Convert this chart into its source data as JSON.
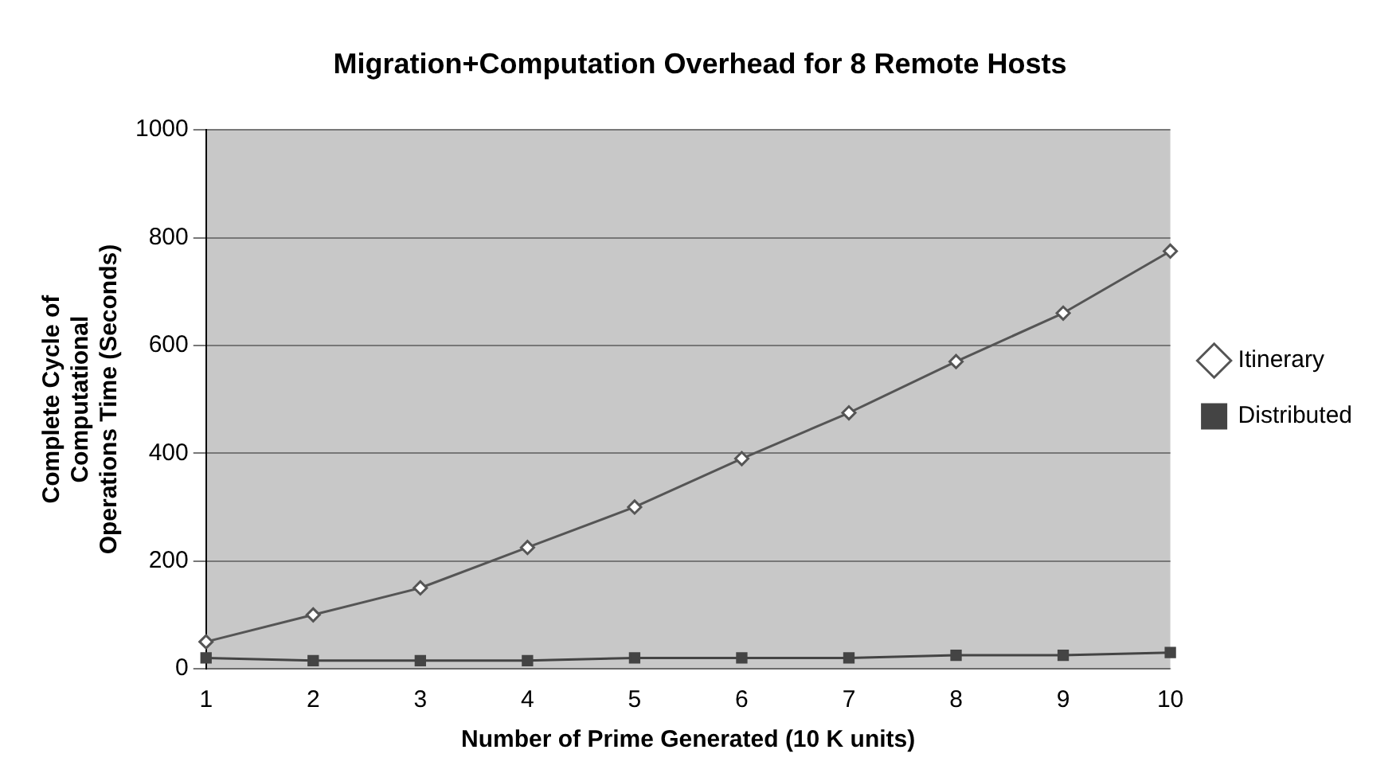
{
  "chart_data": {
    "type": "line",
    "title": "Migration+Computation Overhead for 8 Remote Hosts",
    "xlabel": "Number of Prime Generated (10 K units)",
    "ylabel": "Complete Cycle of Computational Operations Time (Seconds)",
    "categories": [
      "1",
      "2",
      "3",
      "4",
      "5",
      "6",
      "7",
      "8",
      "9",
      "10"
    ],
    "series": [
      {
        "name": "Itinerary",
        "color": "#555555",
        "marker": "diamond",
        "values": [
          50,
          100,
          150,
          225,
          300,
          390,
          475,
          570,
          660,
          775
        ]
      },
      {
        "name": "Distributed",
        "color": "#444444",
        "marker": "square",
        "values": [
          20,
          15,
          15,
          15,
          20,
          20,
          20,
          25,
          25,
          30
        ]
      }
    ],
    "ylim": [
      0,
      1000
    ],
    "yticks": [
      0,
      200,
      400,
      600,
      800,
      1000
    ],
    "grid": "y",
    "legend": "right"
  }
}
